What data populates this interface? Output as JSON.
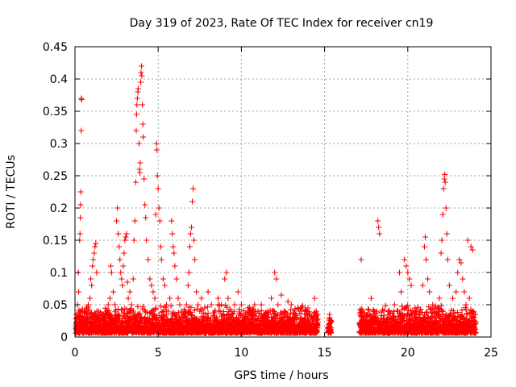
{
  "chart_data": {
    "type": "scatter",
    "title": "Day 319 of 2023, Rate Of TEC Index for receiver cn19",
    "xlabel": "GPS time / hours",
    "ylabel": "ROTI / TECUs",
    "xlim": [
      0,
      25
    ],
    "ylim": [
      0,
      0.45
    ],
    "xticks": [
      "0",
      "5",
      "10",
      "15",
      "20",
      "25"
    ],
    "yticks": [
      "0",
      "0.05",
      "0.1",
      "0.15",
      "0.2",
      "0.25",
      "0.3",
      "0.35",
      "0.4",
      "0.45"
    ],
    "grid": true,
    "marker": "plus",
    "color": "#ff0000",
    "points": [
      [
        0.05,
        0.02
      ],
      [
        0.1,
        0.035
      ],
      [
        0.15,
        0.05
      ],
      [
        0.2,
        0.1
      ],
      [
        0.22,
        0.07
      ],
      [
        0.25,
        0.03
      ],
      [
        0.28,
        0.15
      ],
      [
        0.3,
        0.16
      ],
      [
        0.32,
        0.185
      ],
      [
        0.33,
        0.205
      ],
      [
        0.35,
        0.225
      ],
      [
        0.37,
        0.32
      ],
      [
        0.38,
        0.37
      ],
      [
        0.4,
        0.368
      ],
      [
        0.45,
        0.04
      ],
      [
        0.5,
        0.025
      ],
      [
        0.6,
        0.03
      ],
      [
        0.7,
        0.045
      ],
      [
        0.8,
        0.05
      ],
      [
        0.9,
        0.06
      ],
      [
        0.95,
        0.09
      ],
      [
        1.0,
        0.08
      ],
      [
        1.05,
        0.11
      ],
      [
        1.1,
        0.12
      ],
      [
        1.15,
        0.13
      ],
      [
        1.2,
        0.14
      ],
      [
        1.25,
        0.145
      ],
      [
        1.3,
        0.1
      ],
      [
        1.4,
        0.04
      ],
      [
        1.5,
        0.03
      ],
      [
        1.6,
        0.035
      ],
      [
        1.7,
        0.025
      ],
      [
        1.8,
        0.03
      ],
      [
        1.9,
        0.04
      ],
      [
        2.0,
        0.05
      ],
      [
        2.1,
        0.06
      ],
      [
        2.15,
        0.11
      ],
      [
        2.2,
        0.1
      ],
      [
        2.3,
        0.07
      ],
      [
        2.4,
        0.05
      ],
      [
        2.5,
        0.18
      ],
      [
        2.55,
        0.2
      ],
      [
        2.6,
        0.16
      ],
      [
        2.65,
        0.14
      ],
      [
        2.7,
        0.12
      ],
      [
        2.75,
        0.1
      ],
      [
        2.8,
        0.09
      ],
      [
        2.85,
        0.08
      ],
      [
        2.9,
        0.11
      ],
      [
        2.95,
        0.13
      ],
      [
        3.0,
        0.15
      ],
      [
        3.05,
        0.155
      ],
      [
        3.1,
        0.16
      ],
      [
        3.15,
        0.085
      ],
      [
        3.2,
        0.06
      ],
      [
        3.3,
        0.07
      ],
      [
        3.4,
        0.05
      ],
      [
        3.5,
        0.09
      ],
      [
        3.55,
        0.15
      ],
      [
        3.6,
        0.18
      ],
      [
        3.65,
        0.24
      ],
      [
        3.68,
        0.32
      ],
      [
        3.7,
        0.345
      ],
      [
        3.72,
        0.36
      ],
      [
        3.75,
        0.37
      ],
      [
        3.78,
        0.38
      ],
      [
        3.8,
        0.385
      ],
      [
        3.85,
        0.3
      ],
      [
        3.88,
        0.26
      ],
      [
        3.9,
        0.255
      ],
      [
        3.92,
        0.27
      ],
      [
        3.95,
        0.395
      ],
      [
        3.97,
        0.41
      ],
      [
        4.0,
        0.42
      ],
      [
        4.02,
        0.405
      ],
      [
        4.05,
        0.36
      ],
      [
        4.08,
        0.33
      ],
      [
        4.1,
        0.31
      ],
      [
        4.15,
        0.245
      ],
      [
        4.2,
        0.205
      ],
      [
        4.25,
        0.185
      ],
      [
        4.3,
        0.15
      ],
      [
        4.4,
        0.12
      ],
      [
        4.5,
        0.09
      ],
      [
        4.6,
        0.08
      ],
      [
        4.7,
        0.07
      ],
      [
        4.8,
        0.06
      ],
      [
        4.85,
        0.19
      ],
      [
        4.9,
        0.3
      ],
      [
        4.92,
        0.29
      ],
      [
        4.95,
        0.25
      ],
      [
        5.0,
        0.23
      ],
      [
        5.05,
        0.2
      ],
      [
        5.1,
        0.18
      ],
      [
        5.15,
        0.14
      ],
      [
        5.2,
        0.12
      ],
      [
        5.3,
        0.09
      ],
      [
        5.4,
        0.08
      ],
      [
        5.5,
        0.05
      ],
      [
        5.6,
        0.04
      ],
      [
        5.7,
        0.06
      ],
      [
        5.8,
        0.18
      ],
      [
        5.85,
        0.16
      ],
      [
        5.9,
        0.14
      ],
      [
        5.95,
        0.13
      ],
      [
        6.0,
        0.11
      ],
      [
        6.1,
        0.09
      ],
      [
        6.2,
        0.06
      ],
      [
        6.3,
        0.05
      ],
      [
        6.4,
        0.04
      ],
      [
        6.5,
        0.035
      ],
      [
        6.6,
        0.03
      ],
      [
        6.7,
        0.05
      ],
      [
        6.8,
        0.08
      ],
      [
        6.85,
        0.1
      ],
      [
        6.9,
        0.14
      ],
      [
        6.95,
        0.16
      ],
      [
        7.0,
        0.17
      ],
      [
        7.05,
        0.21
      ],
      [
        7.1,
        0.23
      ],
      [
        7.15,
        0.15
      ],
      [
        7.2,
        0.12
      ],
      [
        7.3,
        0.07
      ],
      [
        7.4,
        0.05
      ],
      [
        7.5,
        0.04
      ],
      [
        7.6,
        0.06
      ],
      [
        7.8,
        0.045
      ],
      [
        8.0,
        0.07
      ],
      [
        8.2,
        0.05
      ],
      [
        8.4,
        0.04
      ],
      [
        8.6,
        0.06
      ],
      [
        8.8,
        0.05
      ],
      [
        9.0,
        0.09
      ],
      [
        9.1,
        0.1
      ],
      [
        9.2,
        0.06
      ],
      [
        9.4,
        0.04
      ],
      [
        9.6,
        0.05
      ],
      [
        9.8,
        0.07
      ],
      [
        10.0,
        0.05
      ],
      [
        10.2,
        0.03
      ],
      [
        10.4,
        0.045
      ],
      [
        10.6,
        0.035
      ],
      [
        10.8,
        0.05
      ],
      [
        11.0,
        0.04
      ],
      [
        11.2,
        0.05
      ],
      [
        11.4,
        0.035
      ],
      [
        11.6,
        0.04
      ],
      [
        11.8,
        0.06
      ],
      [
        12.0,
        0.1
      ],
      [
        12.1,
        0.09
      ],
      [
        12.2,
        0.05
      ],
      [
        12.4,
        0.065
      ],
      [
        12.6,
        0.04
      ],
      [
        12.8,
        0.055
      ],
      [
        13.0,
        0.05
      ],
      [
        13.2,
        0.04
      ],
      [
        13.4,
        0.045
      ],
      [
        13.6,
        0.04
      ],
      [
        13.8,
        0.035
      ],
      [
        14.0,
        0.045
      ],
      [
        14.2,
        0.03
      ],
      [
        14.4,
        0.06
      ],
      [
        14.5,
        0.04
      ],
      [
        15.3,
        0.02
      ],
      [
        15.35,
        0.01
      ],
      [
        17.2,
        0.12
      ],
      [
        17.3,
        0.03
      ],
      [
        17.5,
        0.02
      ],
      [
        17.8,
        0.06
      ],
      [
        18.0,
        0.03
      ],
      [
        18.2,
        0.18
      ],
      [
        18.25,
        0.17
      ],
      [
        18.3,
        0.16
      ],
      [
        18.6,
        0.02
      ],
      [
        18.9,
        0.03
      ],
      [
        19.2,
        0.05
      ],
      [
        19.4,
        0.04
      ],
      [
        19.5,
        0.1
      ],
      [
        19.6,
        0.07
      ],
      [
        19.8,
        0.12
      ],
      [
        19.9,
        0.11
      ],
      [
        20.0,
        0.1
      ],
      [
        20.1,
        0.09
      ],
      [
        20.2,
        0.08
      ],
      [
        20.3,
        0.04
      ],
      [
        20.5,
        0.03
      ],
      [
        20.7,
        0.04
      ],
      [
        20.9,
        0.08
      ],
      [
        21.0,
        0.14
      ],
      [
        21.05,
        0.155
      ],
      [
        21.1,
        0.12
      ],
      [
        21.2,
        0.09
      ],
      [
        21.3,
        0.07
      ],
      [
        21.5,
        0.05
      ],
      [
        21.7,
        0.04
      ],
      [
        21.9,
        0.06
      ],
      [
        22.0,
        0.13
      ],
      [
        22.05,
        0.15
      ],
      [
        22.1,
        0.19
      ],
      [
        22.15,
        0.23
      ],
      [
        22.2,
        0.245
      ],
      [
        22.22,
        0.252
      ],
      [
        22.25,
        0.24
      ],
      [
        22.3,
        0.2
      ],
      [
        22.35,
        0.16
      ],
      [
        22.4,
        0.12
      ],
      [
        22.5,
        0.08
      ],
      [
        22.7,
        0.06
      ],
      [
        22.9,
        0.07
      ],
      [
        23.0,
        0.1
      ],
      [
        23.1,
        0.12
      ],
      [
        23.2,
        0.115
      ],
      [
        23.3,
        0.09
      ],
      [
        23.4,
        0.07
      ],
      [
        23.5,
        0.05
      ],
      [
        23.6,
        0.15
      ],
      [
        23.7,
        0.06
      ],
      [
        23.8,
        0.14
      ],
      [
        23.9,
        0.135
      ],
      [
        24.0,
        0.03
      ]
    ]
  }
}
